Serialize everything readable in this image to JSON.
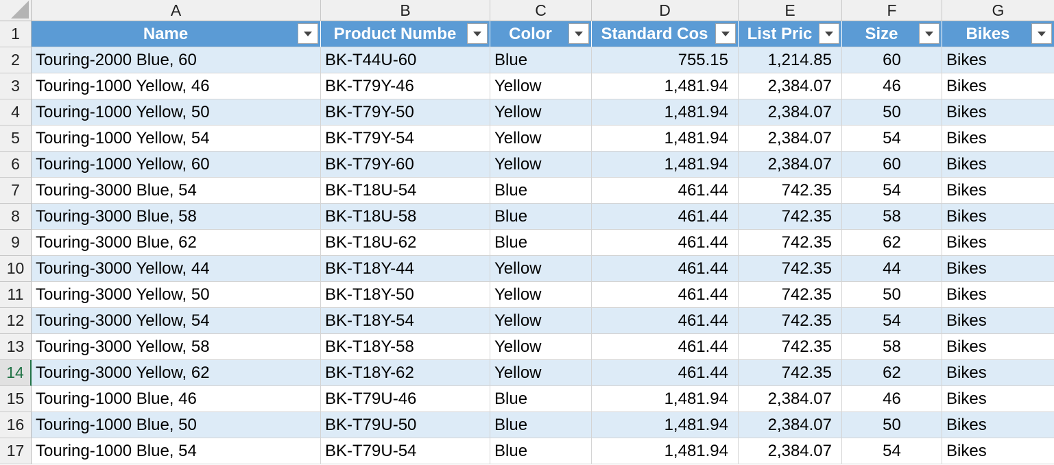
{
  "sheet": {
    "column_letters": [
      "A",
      "B",
      "C",
      "D",
      "E",
      "F",
      "G"
    ],
    "headers": [
      "Name",
      "Product Numbe",
      "Color",
      "Standard Cos",
      "List Pric",
      "Size",
      "Bikes"
    ],
    "rows": [
      {
        "n": "2",
        "cells": [
          "Touring-2000 Blue, 60",
          "BK-T44U-60",
          "Blue",
          "755.15",
          "1,214.85",
          "60",
          "Bikes"
        ]
      },
      {
        "n": "3",
        "cells": [
          "Touring-1000 Yellow, 46",
          "BK-T79Y-46",
          "Yellow",
          "1,481.94",
          "2,384.07",
          "46",
          "Bikes"
        ]
      },
      {
        "n": "4",
        "cells": [
          "Touring-1000 Yellow, 50",
          "BK-T79Y-50",
          "Yellow",
          "1,481.94",
          "2,384.07",
          "50",
          "Bikes"
        ]
      },
      {
        "n": "5",
        "cells": [
          "Touring-1000 Yellow, 54",
          "BK-T79Y-54",
          "Yellow",
          "1,481.94",
          "2,384.07",
          "54",
          "Bikes"
        ]
      },
      {
        "n": "6",
        "cells": [
          "Touring-1000 Yellow, 60",
          "BK-T79Y-60",
          "Yellow",
          "1,481.94",
          "2,384.07",
          "60",
          "Bikes"
        ]
      },
      {
        "n": "7",
        "cells": [
          "Touring-3000 Blue, 54",
          "BK-T18U-54",
          "Blue",
          "461.44",
          "742.35",
          "54",
          "Bikes"
        ]
      },
      {
        "n": "8",
        "cells": [
          "Touring-3000 Blue, 58",
          "BK-T18U-58",
          "Blue",
          "461.44",
          "742.35",
          "58",
          "Bikes"
        ]
      },
      {
        "n": "9",
        "cells": [
          "Touring-3000 Blue, 62",
          "BK-T18U-62",
          "Blue",
          "461.44",
          "742.35",
          "62",
          "Bikes"
        ]
      },
      {
        "n": "10",
        "cells": [
          "Touring-3000 Yellow, 44",
          "BK-T18Y-44",
          "Yellow",
          "461.44",
          "742.35",
          "44",
          "Bikes"
        ]
      },
      {
        "n": "11",
        "cells": [
          "Touring-3000 Yellow, 50",
          "BK-T18Y-50",
          "Yellow",
          "461.44",
          "742.35",
          "50",
          "Bikes"
        ]
      },
      {
        "n": "12",
        "cells": [
          "Touring-3000 Yellow, 54",
          "BK-T18Y-54",
          "Yellow",
          "461.44",
          "742.35",
          "54",
          "Bikes"
        ]
      },
      {
        "n": "13",
        "cells": [
          "Touring-3000 Yellow, 58",
          "BK-T18Y-58",
          "Yellow",
          "461.44",
          "742.35",
          "58",
          "Bikes"
        ]
      },
      {
        "n": "14",
        "cells": [
          "Touring-3000 Yellow, 62",
          "BK-T18Y-62",
          "Yellow",
          "461.44",
          "742.35",
          "62",
          "Bikes"
        ]
      },
      {
        "n": "15",
        "cells": [
          "Touring-1000 Blue, 46",
          "BK-T79U-46",
          "Blue",
          "1,481.94",
          "2,384.07",
          "46",
          "Bikes"
        ]
      },
      {
        "n": "16",
        "cells": [
          "Touring-1000 Blue, 50",
          "BK-T79U-50",
          "Blue",
          "1,481.94",
          "2,384.07",
          "50",
          "Bikes"
        ]
      },
      {
        "n": "17",
        "cells": [
          "Touring-1000 Blue, 54",
          "BK-T79U-54",
          "Blue",
          "1,481.94",
          "2,384.07",
          "54",
          "Bikes"
        ]
      }
    ],
    "active_row": "14",
    "colors": {
      "table_header": "#5b9bd5",
      "band_row": "#ddebf7",
      "grid_line": "#d4d4d4",
      "active_accent": "#217346"
    },
    "icons": {
      "filter": "chevron-down-icon",
      "select_all": "select-all-triangle-icon"
    }
  }
}
